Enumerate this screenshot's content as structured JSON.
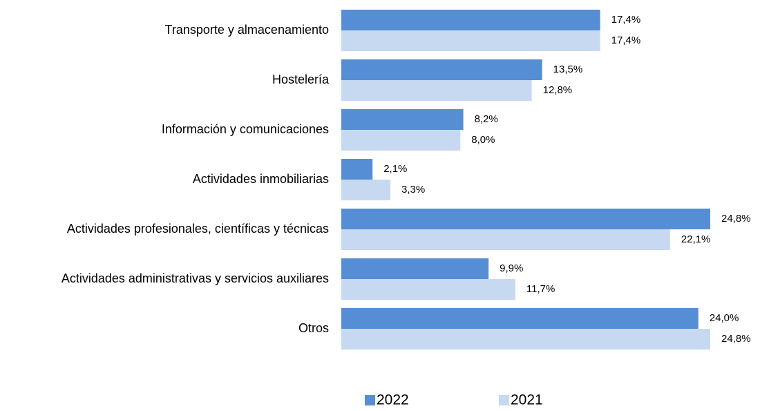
{
  "chart_data": {
    "type": "bar",
    "orientation": "horizontal",
    "categories": [
      "Transporte y almacenamiento",
      "Hostelería",
      "Información y comunicaciones",
      "Actividades inmobiliarias",
      "Actividades profesionales, científicas y técnicas",
      "Actividades administrativas y servicios auxiliares",
      "Otros"
    ],
    "series": [
      {
        "name": "2022",
        "color": "#558ed5",
        "values": [
          17.4,
          13.5,
          8.2,
          2.1,
          24.8,
          9.9,
          24.0
        ],
        "value_labels": [
          "17,4%",
          "13,5%",
          "8,2%",
          "2,1%",
          "24,8%",
          "9,9%",
          "24,0%"
        ]
      },
      {
        "name": "2021",
        "color": "#c6d9f1",
        "values": [
          17.4,
          12.8,
          8.0,
          3.3,
          22.1,
          11.7,
          24.8
        ],
        "value_labels": [
          "17,4%",
          "12,8%",
          "8,0%",
          "3,3%",
          "22,1%",
          "11,7%",
          "24,8%"
        ]
      }
    ],
    "legend": "bottom"
  }
}
